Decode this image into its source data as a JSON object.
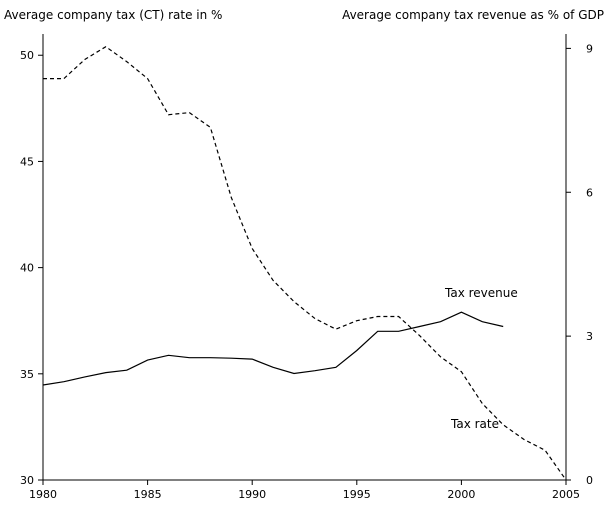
{
  "chart_data": {
    "type": "line",
    "left_axis_title": "Average company tax (CT) rate in %",
    "right_axis_title": "Average company tax revenue as % of GDP",
    "x_ticks": [
      1980,
      1985,
      1990,
      1995,
      2000,
      2005
    ],
    "left_ticks": [
      30,
      35,
      40,
      45,
      50
    ],
    "right_ticks": [
      0,
      3,
      6,
      9
    ],
    "xlim": [
      1980,
      2005
    ],
    "ylim_left": [
      30,
      51
    ],
    "ylim_right": [
      0,
      9.3
    ],
    "grid": false,
    "annotations": {
      "tax_revenue": "Tax revenue",
      "tax_rate": "Tax rate"
    },
    "series": [
      {
        "name": "Tax rate",
        "axis": "left",
        "style": "dashed",
        "x": [
          1980,
          1981,
          1982,
          1983,
          1984,
          1985,
          1986,
          1987,
          1988,
          1989,
          1990,
          1991,
          1992,
          1993,
          1994,
          1995,
          1996,
          1997,
          1998,
          1999,
          2000,
          2001,
          2002,
          2003,
          2004,
          2005
        ],
        "y": [
          48.9,
          48.9,
          49.8,
          50.4,
          49.7,
          48.9,
          47.2,
          47.3,
          46.6,
          43.3,
          40.9,
          39.4,
          38.4,
          37.6,
          37.1,
          37.5,
          37.7,
          37.7,
          36.8,
          35.8,
          35.1,
          33.6,
          32.6,
          31.9,
          31.4,
          30.0
        ]
      },
      {
        "name": "Tax revenue",
        "axis": "right",
        "style": "solid",
        "x": [
          1980,
          1981,
          1982,
          1983,
          1984,
          1985,
          1986,
          1987,
          1988,
          1989,
          1990,
          1991,
          1992,
          1993,
          1994,
          1995,
          1996,
          1997,
          1998,
          1999,
          2000,
          2001,
          2002
        ],
        "y": [
          1.98,
          2.05,
          2.15,
          2.24,
          2.29,
          2.5,
          2.6,
          2.55,
          2.55,
          2.54,
          2.52,
          2.35,
          2.22,
          2.28,
          2.35,
          2.7,
          3.1,
          3.1,
          3.2,
          3.3,
          3.5,
          3.3,
          3.2
        ]
      }
    ]
  }
}
